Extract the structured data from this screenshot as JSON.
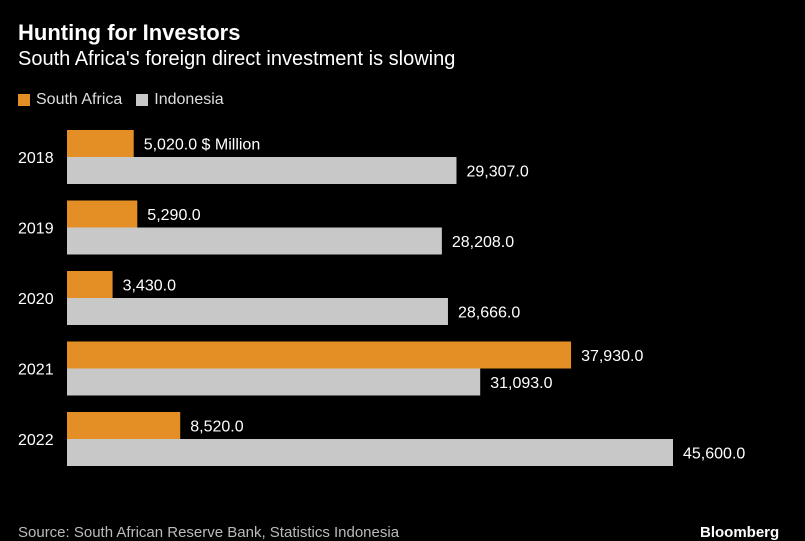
{
  "header": {
    "title": "Hunting for Investors",
    "subtitle": "South Africa's foreign direct investment is slowing"
  },
  "colors": {
    "south_africa": "#e38f26",
    "indonesia": "#c8c8c8",
    "background": "#000000"
  },
  "footer": {
    "source": "Source: South African Reserve Bank, Statistics Indonesia",
    "brand": "Bloomberg"
  },
  "chart_data": {
    "type": "bar",
    "orientation": "horizontal",
    "categories": [
      "2018",
      "2019",
      "2020",
      "2021",
      "2022"
    ],
    "series": [
      {
        "name": "South Africa",
        "values": [
          5020.0,
          5290.0,
          3430.0,
          37930.0,
          8520.0
        ],
        "labels": [
          "5,020.0 $ Million",
          "5,290.0",
          "3,430.0",
          "37,930.0",
          "8,520.0"
        ]
      },
      {
        "name": "Indonesia",
        "values": [
          29307.0,
          28208.0,
          28666.0,
          31093.0,
          45600.0
        ],
        "labels": [
          "29,307.0",
          "28,208.0",
          "28,666.0",
          "31,093.0",
          "45,600.0"
        ]
      }
    ],
    "unit": "$ Million",
    "xlim": [
      0,
      45600
    ],
    "grid": false,
    "legend_position": "top-left"
  }
}
